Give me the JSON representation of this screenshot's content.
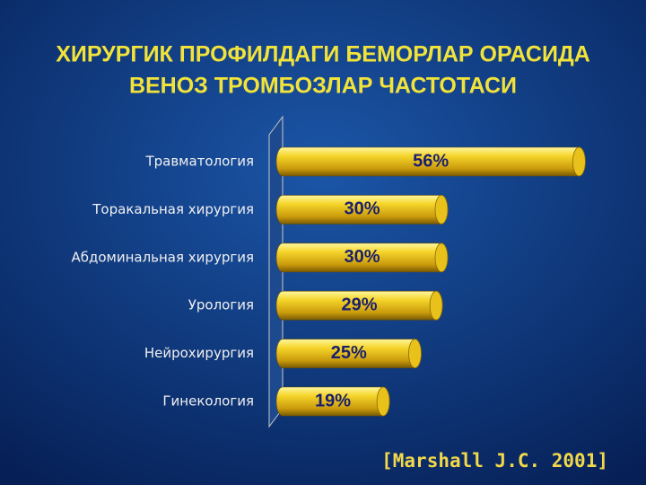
{
  "chart_data": {
    "type": "bar",
    "orientation": "horizontal",
    "title": [
      "ХИРУРГИК ПРОФИЛДАГИ БЕМОРЛАР ОРАСИДА",
      "ВЕНОЗ ТРОМБОЗЛАР ЧАСТОТАСИ"
    ],
    "categories": [
      "Травматология",
      "Торакальная хирургия",
      "Абдоминальная хирургия",
      "Урология",
      "Нейрохирургия",
      "Гинекология"
    ],
    "values": [
      56,
      30,
      30,
      29,
      25,
      19
    ],
    "value_labels": [
      "56%",
      "30%",
      "30%",
      "29%",
      "25%",
      "19%"
    ],
    "color": "#e8c21a",
    "source": "[Marshall J.C. 2001]"
  }
}
